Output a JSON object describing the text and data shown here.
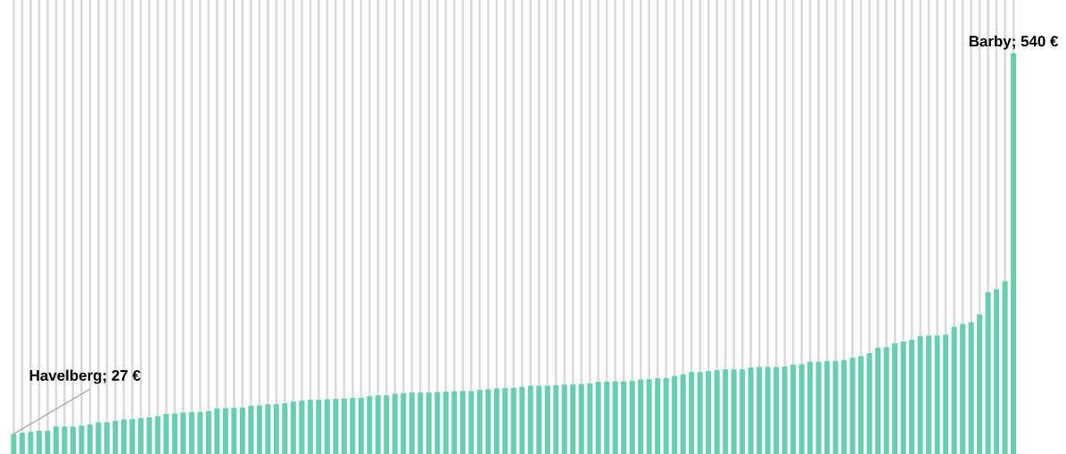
{
  "chart_data": {
    "type": "bar",
    "color": "#66cfb0",
    "grid": "x",
    "categories": [
      null,
      null,
      null,
      null,
      null,
      null,
      null,
      null,
      null,
      null,
      null,
      null,
      null,
      null,
      null,
      null,
      null,
      null,
      null,
      null,
      null,
      null,
      null,
      null,
      null,
      null,
      null,
      null,
      null,
      null,
      null,
      null,
      null,
      null,
      null,
      null,
      null,
      null,
      null,
      null,
      null,
      null,
      null,
      null,
      null,
      null,
      null,
      null,
      null,
      null,
      null,
      null,
      null,
      null,
      null,
      null,
      null,
      null,
      null,
      null,
      null,
      null,
      null,
      null,
      null,
      null,
      null,
      null,
      null,
      null,
      null,
      null,
      null,
      null,
      null,
      null,
      null,
      null,
      null,
      null,
      null,
      null,
      null,
      null,
      null,
      null,
      null,
      null,
      null,
      null,
      null,
      null,
      null,
      null,
      null,
      null,
      null,
      null,
      null,
      null,
      null,
      null,
      null,
      null,
      null,
      null,
      null,
      null,
      null,
      null,
      null,
      null,
      null,
      null,
      null,
      null,
      null,
      null,
      null
    ],
    "values": [
      27,
      28.6,
      29.8,
      31.3,
      31.3,
      37,
      37,
      37,
      38.2,
      39.8,
      42.6,
      42.9,
      44.6,
      46.6,
      47,
      48.2,
      49.4,
      51,
      54.2,
      54.6,
      55.8,
      56.6,
      56.6,
      57.8,
      61.4,
      61.8,
      62.2,
      62.6,
      65,
      65.4,
      67.1,
      67.1,
      68.3,
      70.7,
      71.9,
      73.1,
      73.1,
      73.9,
      74.3,
      74.7,
      75.5,
      75.9,
      77.9,
      79.1,
      79.1,
      81.2,
      82,
      82.8,
      82.8,
      82.8,
      83.6,
      84,
      84.4,
      84.8,
      84.8,
      86.4,
      87.2,
      88.4,
      88.8,
      89.2,
      90.4,
      92,
      92,
      92,
      92.8,
      93.6,
      94,
      94.4,
      95.2,
      97.2,
      97.6,
      98,
      98,
      98.4,
      100.4,
      100.8,
      102,
      102.4,
      105.2,
      107.3,
      110.5,
      110.5,
      111.7,
      112.9,
      114.1,
      114.1,
      114.1,
      116.5,
      117.3,
      117.3,
      117.3,
      117.9,
      120.5,
      120.9,
      124.2,
      124.2,
      125.4,
      125.4,
      126.6,
      129.8,
      131.8,
      135.8,
      143.4,
      143.8,
      149.1,
      151.5,
      153.9,
      159.1,
      159.5,
      159.5,
      160.7,
      171.2,
      175.1,
      177.6,
      188,
      218.2,
      222.2,
      233,
      540
    ],
    "value_labels": [
      "Havelberg; 27 €",
      null,
      null,
      null,
      null,
      null,
      null,
      null,
      null,
      null,
      null,
      null,
      null,
      null,
      null,
      null,
      null,
      null,
      null,
      null,
      null,
      null,
      null,
      null,
      null,
      null,
      null,
      null,
      null,
      null,
      null,
      null,
      null,
      null,
      null,
      null,
      null,
      null,
      null,
      null,
      null,
      null,
      null,
      null,
      null,
      null,
      null,
      null,
      null,
      null,
      null,
      null,
      null,
      null,
      null,
      null,
      null,
      null,
      null,
      null,
      null,
      null,
      null,
      null,
      null,
      null,
      null,
      null,
      null,
      null,
      null,
      null,
      null,
      null,
      null,
      null,
      null,
      null,
      null,
      null,
      null,
      null,
      null,
      null,
      null,
      null,
      null,
      null,
      null,
      null,
      null,
      null,
      null,
      null,
      null,
      null,
      null,
      null,
      null,
      null,
      null,
      null,
      null,
      null,
      null,
      null,
      null,
      null,
      null,
      null,
      null,
      null,
      null,
      null,
      null,
      null,
      null,
      null,
      "Barby; 540 €"
    ]
  }
}
